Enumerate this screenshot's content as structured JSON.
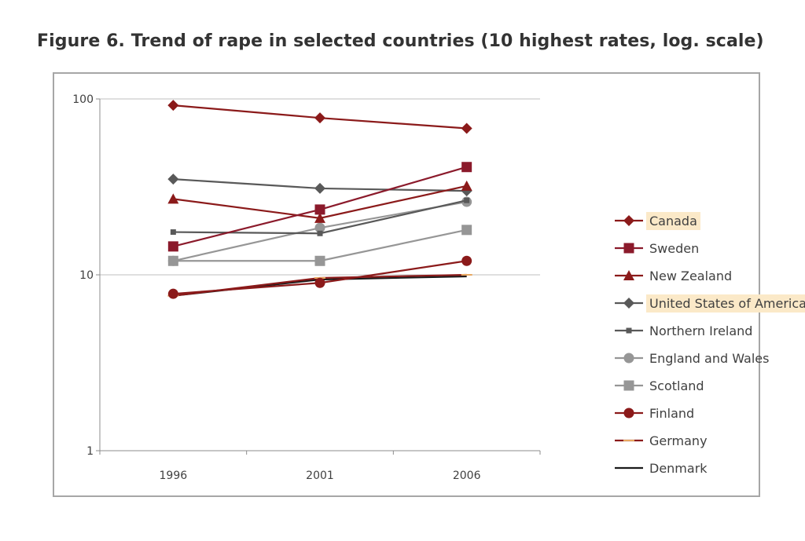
{
  "title": "Figure 6. Trend of rape in selected countries (10 highest rates, log. scale)",
  "chart_data": {
    "type": "line",
    "title": "Figure 6. Trend of rape in selected countries (10 highest rates, log. scale)",
    "xlabel": "",
    "ylabel": "",
    "x": [
      "1996",
      "2001",
      "2006"
    ],
    "y_scale": "log",
    "ylim": [
      1,
      100
    ],
    "y_ticks": [
      "1",
      "10",
      "100"
    ],
    "grid": "horizontal",
    "legend_position": "right",
    "series": [
      {
        "name": "Canada",
        "color": "#8b1a1a",
        "marker": "diamond",
        "highlight": true,
        "values": [
          92,
          78,
          68
        ]
      },
      {
        "name": "Sweden",
        "color": "#8b1a2b",
        "marker": "square",
        "highlight": false,
        "values": [
          14.5,
          23.5,
          41
        ]
      },
      {
        "name": "New Zealand",
        "color": "#8b1a1a",
        "marker": "triangle",
        "highlight": false,
        "values": [
          27,
          21,
          32
        ]
      },
      {
        "name": "United States of America",
        "color": "#595959",
        "marker": "diamond",
        "highlight": true,
        "values": [
          35,
          31,
          30
        ]
      },
      {
        "name": "Northern Ireland",
        "color": "#595959",
        "marker": "small-square",
        "highlight": false,
        "values": [
          17.5,
          17.2,
          26.5
        ]
      },
      {
        "name": "England and Wales",
        "color": "#969696",
        "marker": "circle",
        "highlight": false,
        "values": [
          12,
          18.5,
          26
        ]
      },
      {
        "name": "Scotland",
        "color": "#969696",
        "marker": "square",
        "highlight": false,
        "values": [
          12,
          12,
          18
        ]
      },
      {
        "name": "Finland",
        "color": "#8b1a1a",
        "marker": "circle",
        "highlight": false,
        "values": [
          7.8,
          9,
          12
        ]
      },
      {
        "name": "Germany",
        "color": "#8b1a1a",
        "marker": "dash",
        "highlight": false,
        "values": [
          7.6,
          9.6,
          10
        ]
      },
      {
        "name": "Denmark",
        "color": "#1a1a1a",
        "marker": "none",
        "highlight": false,
        "values": [
          7.6,
          9.4,
          9.8
        ]
      }
    ]
  }
}
